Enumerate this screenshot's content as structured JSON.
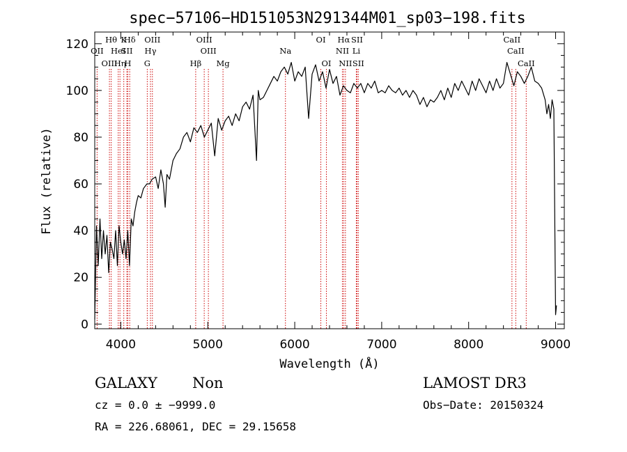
{
  "chart_data": {
    "type": "line",
    "title": "spec−57106−HD151053N291344M01_sp03−198.fits",
    "xlabel": "Wavelength (Å)",
    "ylabel": "Flux (relative)",
    "xlim": [
      3700,
      9100
    ],
    "ylim": [
      -2,
      125
    ],
    "x_ticks": [
      4000,
      5000,
      6000,
      7000,
      8000,
      9000
    ],
    "y_ticks": [
      0,
      20,
      40,
      60,
      80,
      100,
      120
    ],
    "grid": false,
    "line_color": "#000000",
    "marker_color": "#cc0000",
    "series": [
      {
        "x": [
          3700,
          3720,
          3740,
          3760,
          3780,
          3800,
          3820,
          3840,
          3860,
          3880,
          3900,
          3920,
          3940,
          3960,
          3980,
          4000,
          4020,
          4040,
          4060,
          4080,
          4100,
          4120,
          4140,
          4160,
          4180,
          4200,
          4230,
          4260,
          4300,
          4330,
          4360,
          4400,
          4430,
          4460,
          4490,
          4510,
          4530,
          4560,
          4600,
          4640,
          4680,
          4720,
          4760,
          4800,
          4840,
          4880,
          4920,
          4960,
          5000,
          5040,
          5080,
          5120,
          5160,
          5200,
          5240,
          5280,
          5320,
          5360,
          5400,
          5440,
          5480,
          5520,
          5560,
          5580,
          5600,
          5640,
          5680,
          5720,
          5760,
          5800,
          5840,
          5880,
          5920,
          5960,
          6000,
          6040,
          6080,
          6120,
          6160,
          6200,
          6240,
          6280,
          6320,
          6360,
          6400,
          6440,
          6480,
          6520,
          6560,
          6600,
          6640,
          6680,
          6720,
          6760,
          6800,
          6840,
          6880,
          6920,
          6960,
          7000,
          7040,
          7080,
          7120,
          7160,
          7200,
          7240,
          7280,
          7320,
          7360,
          7400,
          7440,
          7480,
          7520,
          7560,
          7600,
          7640,
          7680,
          7720,
          7760,
          7800,
          7840,
          7880,
          7920,
          7960,
          8000,
          8040,
          8080,
          8120,
          8160,
          8200,
          8240,
          8280,
          8320,
          8360,
          8400,
          8440,
          8480,
          8520,
          8560,
          8600,
          8640,
          8680,
          8720,
          8760,
          8800,
          8840,
          8880,
          8900,
          8920,
          8940,
          8960,
          8980,
          9000,
          9010
        ],
        "y": [
          2,
          42,
          25,
          45,
          28,
          40,
          30,
          38,
          22,
          35,
          32,
          28,
          40,
          25,
          42,
          35,
          30,
          36,
          28,
          40,
          25,
          45,
          42,
          48,
          52,
          55,
          54,
          58,
          60,
          60,
          62,
          63,
          58,
          66,
          60,
          50,
          64,
          62,
          70,
          73,
          75,
          80,
          82,
          78,
          84,
          82,
          85,
          80,
          83,
          86,
          72,
          88,
          83,
          87,
          89,
          85,
          90,
          87,
          93,
          95,
          92,
          98,
          70,
          100,
          96,
          97,
          100,
          103,
          106,
          104,
          108,
          110,
          107,
          112,
          104,
          108,
          106,
          110,
          88,
          107,
          111,
          104,
          108,
          101,
          109,
          103,
          106,
          98,
          102,
          100,
          99,
          103,
          101,
          103,
          99,
          103,
          101,
          104,
          99,
          100,
          99,
          102,
          100,
          99,
          101,
          98,
          100,
          97,
          100,
          98,
          94,
          97,
          93,
          96,
          95,
          97,
          100,
          96,
          101,
          97,
          103,
          100,
          104,
          101,
          98,
          104,
          100,
          105,
          102,
          99,
          104,
          100,
          105,
          101,
          103,
          112,
          107,
          102,
          108,
          106,
          103,
          106,
          110,
          104,
          103,
          101,
          96,
          90,
          94,
          88,
          96,
          92,
          4,
          8
        ]
      }
    ],
    "line_markers": [
      {
        "label": "OII",
        "wavelength": 3727,
        "row": 2
      },
      {
        "label": "OIII",
        "wavelength": 3869,
        "row": 3
      },
      {
        "label": "Hθ",
        "wavelength": 3889,
        "row": 1
      },
      {
        "label": "HeI",
        "wavelength": 3970,
        "row": 2
      },
      {
        "label": "Hη",
        "wavelength": 3990,
        "row": 3
      },
      {
        "label": "K",
        "wavelength": 4034,
        "row": 1
      },
      {
        "label": "H",
        "wavelength": 4080,
        "row": 3
      },
      {
        "label": "Hδ",
        "wavelength": 4102,
        "row": 1
      },
      {
        "label": "SII",
        "wavelength": 4069,
        "row": 2
      },
      {
        "label": "OIII",
        "wavelength": 4363,
        "row": 1
      },
      {
        "label": "Hγ",
        "wavelength": 4341,
        "row": 2
      },
      {
        "label": "G",
        "wavelength": 4304,
        "row": 3
      },
      {
        "label": "Hβ",
        "wavelength": 4861,
        "row": 3
      },
      {
        "label": "OIII",
        "wavelength": 4959,
        "row": 1
      },
      {
        "label": "OIII",
        "wavelength": 5007,
        "row": 2
      },
      {
        "label": "Mg",
        "wavelength": 5175,
        "row": 3
      },
      {
        "label": "Na",
        "wavelength": 5893,
        "row": 2
      },
      {
        "label": "OI",
        "wavelength": 6300,
        "row": 1
      },
      {
        "label": "OI",
        "wavelength": 6364,
        "row": 3
      },
      {
        "label": "Hα",
        "wavelength": 6563,
        "row": 1
      },
      {
        "label": "SII",
        "wavelength": 6716,
        "row": 1
      },
      {
        "label": "NII",
        "wavelength": 6548,
        "row": 2
      },
      {
        "label": "Li",
        "wavelength": 6708,
        "row": 2
      },
      {
        "label": "NII",
        "wavelength": 6583,
        "row": 3
      },
      {
        "label": "SII",
        "wavelength": 6731,
        "row": 3
      },
      {
        "label": "CaII",
        "wavelength": 8498,
        "row": 1
      },
      {
        "label": "CaII",
        "wavelength": 8542,
        "row": 2
      },
      {
        "label": "CaII",
        "wavelength": 8662,
        "row": 3
      }
    ]
  },
  "info": {
    "object_type": "GALAXY",
    "subclass": "Non",
    "survey": "LAMOST DR3",
    "redshift_line": "cz = 0.0 ± −9999.0",
    "obs_date_line": "Obs−Date: 20150324",
    "coords_line": "RA = 226.68061, DEC =  29.15658"
  }
}
